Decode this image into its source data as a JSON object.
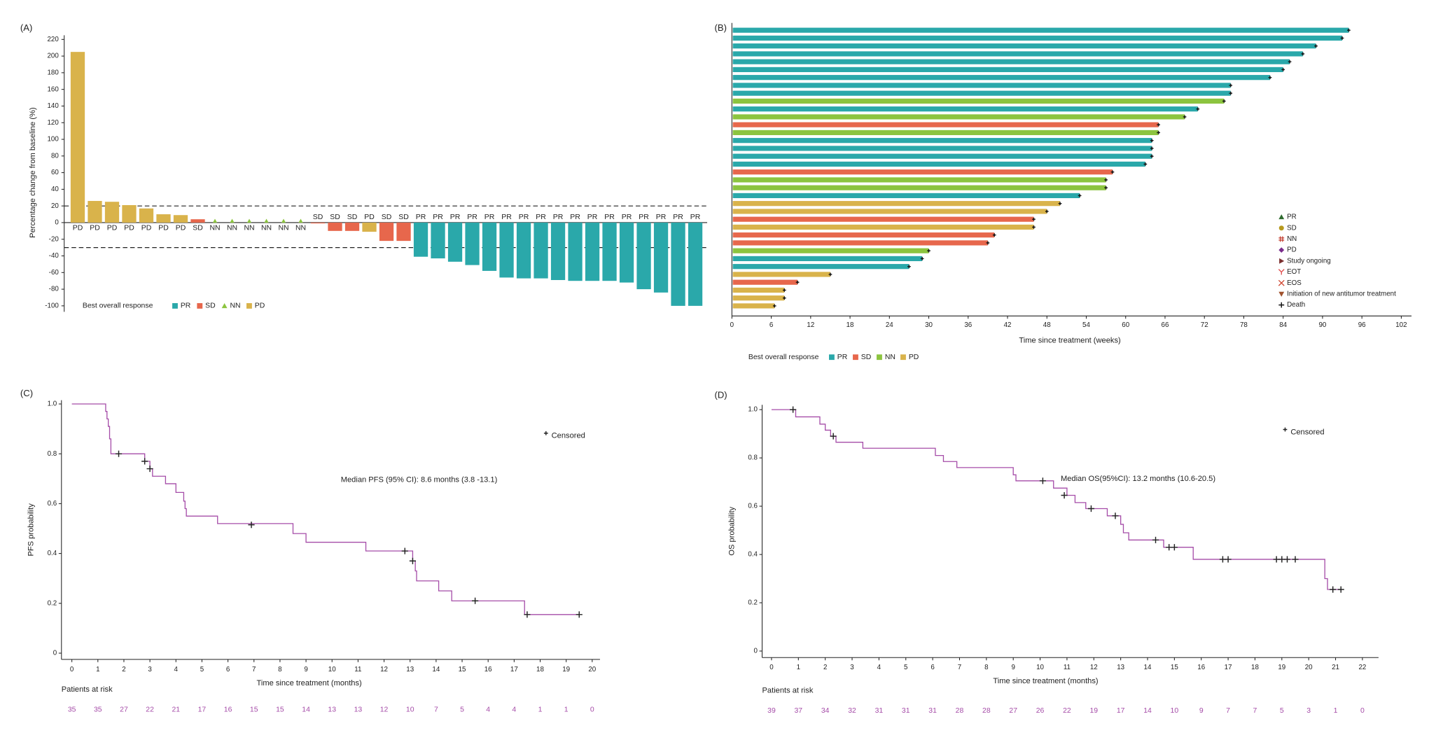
{
  "chart_data": [
    {
      "type": "waterfall",
      "panel": "(A)",
      "ylabel": "Percentage change from baseline (%)",
      "categories": [
        "PD",
        "PD",
        "PD",
        "PD",
        "PD",
        "PD",
        "PD",
        "SD",
        "NN",
        "NN",
        "NN",
        "NN",
        "NN",
        "NN",
        "SD",
        "SD",
        "SD",
        "PD",
        "SD",
        "SD",
        "PR",
        "PR",
        "PR",
        "PR",
        "PR",
        "PR",
        "PR",
        "PR",
        "PR",
        "PR",
        "PR",
        "PR",
        "PR",
        "PR",
        "PR",
        "PR",
        "PR"
      ],
      "values": [
        205,
        26,
        25,
        21,
        17,
        10,
        9,
        4,
        0,
        0,
        0,
        0,
        0,
        0,
        -1,
        -10,
        -10,
        -11,
        -22,
        -22,
        -41,
        -43,
        -47,
        -51,
        -58,
        -66,
        -67,
        -67,
        -69,
        -70,
        -70,
        -70,
        -72,
        -80,
        -84,
        -100,
        -100
      ],
      "ylim": [
        -105,
        225
      ],
      "yticks": [
        -100,
        -80,
        -60,
        -40,
        -20,
        0,
        20,
        40,
        60,
        80,
        100,
        120,
        140,
        160,
        180,
        200,
        220
      ],
      "reference_lines": [
        20,
        -30
      ],
      "legend_title": "Best overall response",
      "legend": [
        {
          "name": "PR",
          "color": "#2aa8aa"
        },
        {
          "name": "SD",
          "color": "#e7674c"
        },
        {
          "name": "NN",
          "color": "#8cc43f"
        },
        {
          "name": "PD",
          "color": "#d9b34b"
        }
      ]
    },
    {
      "type": "swimmer",
      "panel": "(B)",
      "xlabel": "Time since treatment (weeks)",
      "xlim": [
        0,
        103
      ],
      "xticks": [
        0,
        6,
        12,
        18,
        24,
        30,
        36,
        42,
        48,
        54,
        60,
        66,
        72,
        78,
        84,
        90,
        96,
        102
      ],
      "legend_title": "Best overall response",
      "series": [
        {
          "name": "PR",
          "color": "#2aa8aa",
          "values": [
            94,
            93,
            89,
            87,
            85,
            84,
            82,
            76,
            76,
            null,
            71,
            null,
            null,
            null,
            64,
            64,
            64,
            63,
            null,
            null,
            null,
            53,
            null,
            null,
            null,
            null,
            null,
            null,
            null,
            29,
            27,
            null,
            null,
            null,
            null,
            null
          ]
        },
        {
          "name": "SD",
          "color": "#e7674c",
          "values": [
            null,
            null,
            null,
            null,
            null,
            null,
            null,
            null,
            null,
            null,
            null,
            null,
            65,
            null,
            null,
            null,
            null,
            null,
            58,
            null,
            null,
            null,
            null,
            null,
            46,
            null,
            40,
            39,
            null,
            null,
            null,
            null,
            10,
            null,
            null,
            null
          ]
        },
        {
          "name": "NN",
          "color": "#8cc43f",
          "values": [
            null,
            null,
            null,
            null,
            null,
            null,
            null,
            null,
            null,
            75,
            null,
            69,
            null,
            65,
            null,
            null,
            null,
            null,
            null,
            57,
            57,
            null,
            null,
            null,
            null,
            null,
            null,
            null,
            30,
            null,
            null,
            null,
            null,
            null,
            null,
            null
          ]
        },
        {
          "name": "PD",
          "color": "#d9b34b",
          "values": [
            null,
            null,
            null,
            null,
            null,
            null,
            null,
            null,
            null,
            null,
            null,
            null,
            null,
            null,
            null,
            null,
            null,
            null,
            null,
            null,
            null,
            null,
            50,
            48,
            null,
            46,
            null,
            null,
            null,
            null,
            null,
            15,
            null,
            8,
            8,
            6.5
          ]
        }
      ],
      "event_legend": [
        {
          "name": "PR",
          "symbol": "triangle",
          "color": "#2f6b2f"
        },
        {
          "name": "SD",
          "symbol": "circle",
          "color": "#b79a1e"
        },
        {
          "name": "NN",
          "symbol": "hash",
          "color": "#c0392b"
        },
        {
          "name": "PD",
          "symbol": "diamond",
          "color": "#7a2d8c"
        },
        {
          "name": "Study ongoing",
          "symbol": "right",
          "color": "#7b2f2f"
        },
        {
          "name": "EOT",
          "symbol": "y",
          "color": "#e04848"
        },
        {
          "name": "EOS",
          "symbol": "x",
          "color": "#d0452f"
        },
        {
          "name": "Initiation of new antitumor treatment",
          "symbol": "down",
          "color": "#a0522d"
        },
        {
          "name": "Death",
          "symbol": "plus",
          "color": "#111111"
        }
      ]
    },
    {
      "type": "kaplan_meier",
      "panel": "(C)",
      "ylabel": "PFS probability",
      "xlabel": "Time since treatment (months)",
      "color": "#a54ca8",
      "censor_label": "Censored",
      "median_text": "Median PFS (95% CI): 8.6 months (3.8 -13.1)",
      "x": [
        0,
        1.3,
        1.35,
        1.4,
        1.45,
        1.5,
        2.8,
        3.0,
        3.1,
        3.6,
        4.0,
        4.3,
        4.35,
        4.4,
        5.6,
        8.5,
        9.0,
        11.3,
        13.1,
        13.2,
        13.25,
        14.1,
        14.6,
        17.4,
        19.5
      ],
      "values": [
        1,
        0.97,
        0.94,
        0.91,
        0.86,
        0.8,
        0.77,
        0.74,
        0.71,
        0.68,
        0.645,
        0.61,
        0.58,
        0.55,
        0.52,
        0.48,
        0.445,
        0.41,
        0.37,
        0.33,
        0.29,
        0.25,
        0.21,
        0.155,
        0.155
      ],
      "censored_x": [
        1.8,
        2.8,
        3.0,
        6.9,
        12.8,
        13.1,
        15.5,
        17.5,
        19.5
      ],
      "censored_y": [
        0.8,
        0.77,
        0.74,
        0.515,
        0.41,
        0.37,
        0.21,
        0.155,
        0.155
      ],
      "xlim": [
        -0.4,
        20.3
      ],
      "ylim": [
        -0.025,
        1.015
      ],
      "xticks": [
        0,
        1,
        2,
        3,
        4,
        5,
        6,
        7,
        8,
        9,
        10,
        11,
        12,
        13,
        14,
        15,
        16,
        17,
        18,
        19,
        20
      ],
      "yticks": [
        0,
        0.2,
        0.4,
        0.6,
        0.8,
        {
          "value": 1,
          "label": "1.0"
        }
      ],
      "risk_label": "Patients at risk",
      "risk_values": [
        35,
        35,
        27,
        22,
        21,
        17,
        16,
        15,
        15,
        14,
        13,
        13,
        12,
        10,
        7,
        5,
        4,
        4,
        1,
        1,
        0
      ]
    },
    {
      "type": "kaplan_meier",
      "panel": "(D)",
      "ylabel": "OS probability",
      "xlabel": "Time since treatment (months)",
      "color": "#a54ca8",
      "censor_label": "Censored",
      "median_text": "Median OS(95%CI): 13.2 months (10.6-20.5)",
      "x": [
        0,
        0.9,
        1.8,
        2.0,
        2.2,
        2.4,
        3.4,
        6.1,
        6.4,
        6.9,
        9.0,
        9.1,
        10.5,
        11.0,
        11.3,
        11.7,
        12.5,
        13.0,
        13.1,
        13.3,
        14.6,
        15.7,
        20.6,
        20.7,
        21.2
      ],
      "values": [
        1,
        0.97,
        0.94,
        0.915,
        0.89,
        0.865,
        0.84,
        0.81,
        0.785,
        0.76,
        0.73,
        0.705,
        0.675,
        0.645,
        0.615,
        0.59,
        0.56,
        0.525,
        0.49,
        0.46,
        0.43,
        0.38,
        0.3,
        0.255,
        0.255
      ],
      "censored_x": [
        0.8,
        2.3,
        10.1,
        10.9,
        11.9,
        12.8,
        14.3,
        14.8,
        15.0,
        16.8,
        17.0,
        18.8,
        19.0,
        19.2,
        19.5,
        20.9,
        21.2
      ],
      "censored_y": [
        1,
        0.89,
        0.705,
        0.645,
        0.59,
        0.56,
        0.46,
        0.43,
        0.43,
        0.38,
        0.38,
        0.38,
        0.38,
        0.38,
        0.38,
        0.255,
        0.255
      ],
      "xlim": [
        -0.35,
        22.6
      ],
      "ylim": [
        -0.027,
        1.02
      ],
      "xticks": [
        0,
        1,
        2,
        3,
        4,
        5,
        6,
        7,
        8,
        9,
        10,
        11,
        12,
        13,
        14,
        15,
        16,
        17,
        18,
        19,
        20,
        21,
        22
      ],
      "yticks": [
        0,
        0.2,
        0.4,
        0.6,
        0.8,
        {
          "value": 1,
          "label": "1.0"
        }
      ],
      "risk_label": "Patients at risk",
      "risk_values": [
        39,
        37,
        34,
        32,
        31,
        31,
        31,
        28,
        28,
        27,
        26,
        22,
        19,
        17,
        14,
        10,
        9,
        7,
        7,
        5,
        3,
        1,
        0
      ]
    }
  ]
}
